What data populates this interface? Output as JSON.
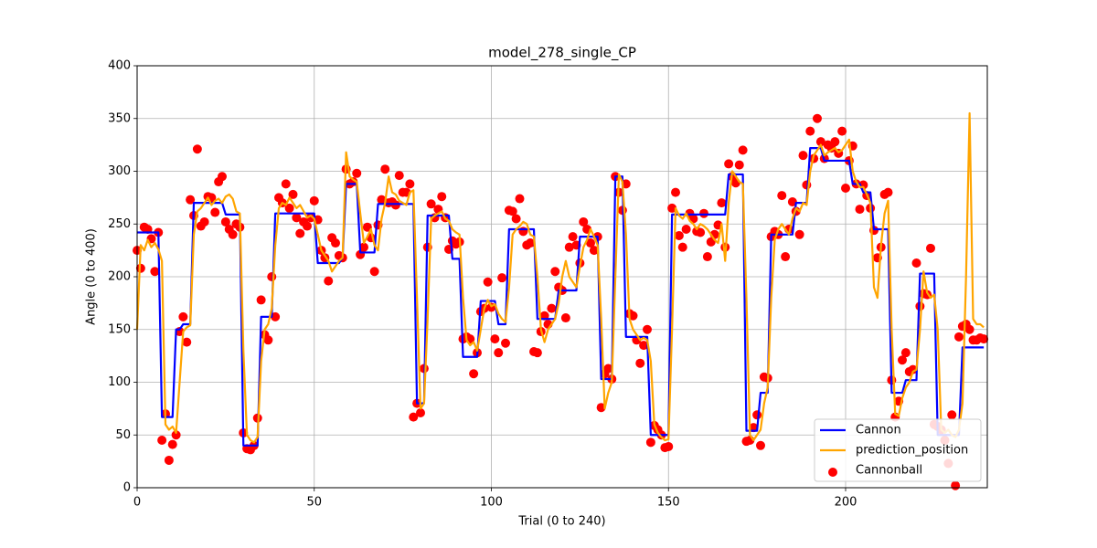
{
  "chart_data": {
    "type": "line",
    "title": "model_278_single_CP",
    "x_label": "Trial (0 to 240)",
    "y_label": "Angle (0 to 400)",
    "xlim": [
      0,
      240
    ],
    "ylim": [
      0,
      400
    ],
    "xticks": [
      0,
      50,
      100,
      150,
      200
    ],
    "yticks": [
      0,
      50,
      100,
      150,
      200,
      250,
      300,
      350,
      400
    ],
    "grid": true,
    "legend": "lower right",
    "x": [
      0,
      1,
      2,
      3,
      4,
      5,
      6,
      7,
      8,
      9,
      10,
      11,
      12,
      13,
      14,
      15,
      16,
      17,
      18,
      19,
      20,
      21,
      22,
      23,
      24,
      25,
      26,
      27,
      28,
      29,
      30,
      31,
      32,
      33,
      34,
      35,
      36,
      37,
      38,
      39,
      40,
      41,
      42,
      43,
      44,
      45,
      46,
      47,
      48,
      49,
      50,
      51,
      52,
      53,
      54,
      55,
      56,
      57,
      58,
      59,
      60,
      61,
      62,
      63,
      64,
      65,
      66,
      67,
      68,
      69,
      70,
      71,
      72,
      73,
      74,
      75,
      76,
      77,
      78,
      79,
      80,
      81,
      82,
      83,
      84,
      85,
      86,
      87,
      88,
      89,
      90,
      91,
      92,
      93,
      94,
      95,
      96,
      97,
      98,
      99,
      100,
      101,
      102,
      103,
      104,
      105,
      106,
      107,
      108,
      109,
      110,
      111,
      112,
      113,
      114,
      115,
      116,
      117,
      118,
      119,
      120,
      121,
      122,
      123,
      124,
      125,
      126,
      127,
      128,
      129,
      130,
      131,
      132,
      133,
      134,
      135,
      136,
      137,
      138,
      139,
      140,
      141,
      142,
      143,
      144,
      145,
      146,
      147,
      148,
      149,
      150,
      151,
      152,
      153,
      154,
      155,
      156,
      157,
      158,
      159,
      160,
      161,
      162,
      163,
      164,
      165,
      166,
      167,
      168,
      169,
      170,
      171,
      172,
      173,
      174,
      175,
      176,
      177,
      178,
      179,
      180,
      181,
      182,
      183,
      184,
      185,
      186,
      187,
      188,
      189,
      190,
      191,
      192,
      193,
      194,
      195,
      196,
      197,
      198,
      199,
      200,
      201,
      202,
      203,
      204,
      205,
      206,
      207,
      208,
      209,
      210,
      211,
      212,
      213,
      214,
      215,
      216,
      217,
      218,
      219,
      220,
      221,
      222,
      223,
      224,
      225,
      226,
      227,
      228,
      229,
      230,
      231,
      232,
      233,
      234,
      235,
      236,
      237,
      238,
      239
    ],
    "series": [
      {
        "name": "Cannon",
        "type": "line",
        "color": "#0000ff",
        "values": [
          242,
          242,
          242,
          242,
          242,
          242,
          242,
          67,
          67,
          67,
          67,
          150,
          150,
          155,
          155,
          155,
          270,
          270,
          270,
          270,
          270,
          270,
          270,
          270,
          270,
          259,
          259,
          259,
          259,
          259,
          40,
          40,
          40,
          40,
          40,
          162,
          162,
          162,
          162,
          260,
          260,
          260,
          260,
          260,
          260,
          260,
          260,
          260,
          260,
          260,
          260,
          213,
          213,
          213,
          213,
          213,
          213,
          213,
          218,
          288,
          288,
          288,
          288,
          223,
          223,
          223,
          223,
          223,
          269,
          269,
          269,
          269,
          269,
          269,
          269,
          269,
          269,
          269,
          269,
          80,
          80,
          80,
          258,
          258,
          258,
          258,
          258,
          258,
          258,
          217,
          217,
          217,
          124,
          124,
          124,
          124,
          124,
          177,
          177,
          177,
          177,
          177,
          155,
          155,
          155,
          245,
          245,
          245,
          245,
          245,
          245,
          245,
          245,
          160,
          160,
          160,
          160,
          160,
          160,
          187,
          187,
          187,
          187,
          187,
          187,
          238,
          238,
          238,
          238,
          238,
          238,
          103,
          103,
          103,
          103,
          295,
          295,
          295,
          143,
          143,
          143,
          143,
          143,
          143,
          143,
          50,
          50,
          50,
          50,
          50,
          50,
          259,
          259,
          259,
          259,
          259,
          259,
          259,
          259,
          259,
          259,
          259,
          259,
          259,
          259,
          259,
          259,
          297,
          297,
          297,
          297,
          297,
          54,
          54,
          54,
          54,
          90,
          90,
          90,
          240,
          240,
          240,
          240,
          240,
          240,
          240,
          270,
          270,
          270,
          270,
          322,
          322,
          322,
          322,
          310,
          310,
          310,
          310,
          310,
          310,
          310,
          310,
          288,
          288,
          288,
          280,
          280,
          280,
          245,
          245,
          245,
          245,
          245,
          90,
          90,
          90,
          90,
          102,
          102,
          102,
          102,
          203,
          203,
          203,
          203,
          203,
          50,
          50,
          50,
          50,
          50,
          50,
          50,
          133,
          133,
          133,
          133,
          133,
          133,
          133
        ]
      },
      {
        "name": "prediction_position",
        "type": "line",
        "color": "#ffa500",
        "values": [
          150,
          230,
          225,
          235,
          228,
          232,
          226,
          215,
          60,
          55,
          58,
          52,
          100,
          148,
          152,
          154,
          240,
          262,
          265,
          270,
          275,
          268,
          272,
          274,
          270,
          276,
          278,
          274,
          262,
          260,
          130,
          50,
          45,
          43,
          48,
          120,
          150,
          155,
          170,
          230,
          265,
          270,
          268,
          275,
          270,
          265,
          268,
          262,
          256,
          258,
          255,
          240,
          225,
          220,
          215,
          205,
          210,
          215,
          218,
          318,
          295,
          292,
          290,
          260,
          232,
          238,
          245,
          230,
          225,
          255,
          270,
          295,
          280,
          278,
          272,
          270,
          268,
          280,
          282,
          180,
          75,
          80,
          160,
          255,
          258,
          260,
          262,
          255,
          253,
          245,
          242,
          240,
          180,
          140,
          135,
          138,
          130,
          150,
          170,
          178,
          172,
          174,
          165,
          160,
          157,
          190,
          240,
          245,
          248,
          252,
          250,
          240,
          238,
          200,
          150,
          138,
          150,
          155,
          160,
          175,
          200,
          215,
          200,
          195,
          190,
          210,
          228,
          235,
          245,
          238,
          230,
          160,
          75,
          90,
          100,
          200,
          297,
          290,
          240,
          160,
          150,
          145,
          140,
          142,
          140,
          120,
          60,
          52,
          48,
          45,
          46,
          150,
          265,
          258,
          255,
          260,
          253,
          250,
          245,
          250,
          248,
          245,
          240,
          235,
          232,
          250,
          215,
          270,
          300,
          295,
          290,
          288,
          180,
          50,
          45,
          50,
          55,
          80,
          95,
          180,
          235,
          245,
          250,
          245,
          240,
          255,
          265,
          262,
          270,
          268,
          300,
          315,
          320,
          325,
          315,
          318,
          320,
          322,
          318,
          320,
          325,
          330,
          300,
          290,
          285,
          285,
          278,
          270,
          190,
          180,
          230,
          260,
          272,
          150,
          70,
          68,
          85,
          95,
          100,
          110,
          112,
          150,
          205,
          185,
          180,
          183,
          150,
          55,
          52,
          55,
          50,
          48,
          55,
          80,
          200,
          355,
          160,
          155,
          155,
          152
        ]
      },
      {
        "name": "Cannonball",
        "type": "scatter",
        "color": "#ff0000",
        "values": [
          225,
          208,
          247,
          245,
          236,
          205,
          242,
          45,
          70,
          26,
          41,
          50,
          148,
          162,
          138,
          273,
          258,
          321,
          248,
          252,
          276,
          275,
          261,
          290,
          295,
          252,
          245,
          240,
          250,
          247,
          52,
          37,
          36,
          40,
          66,
          178,
          145,
          140,
          200,
          162,
          275,
          270,
          288,
          265,
          278,
          256,
          241,
          252,
          248,
          256,
          272,
          254,
          225,
          218,
          196,
          237,
          232,
          220,
          218,
          302,
          288,
          290,
          298,
          221,
          228,
          247,
          237,
          205,
          249,
          273,
          302,
          270,
          271,
          268,
          296,
          280,
          280,
          288,
          67,
          80,
          71,
          113,
          228,
          269,
          256,
          264,
          276,
          256,
          226,
          234,
          231,
          233,
          141,
          143,
          141,
          108,
          128,
          167,
          170,
          195,
          171,
          141,
          128,
          199,
          137,
          263,
          262,
          255,
          274,
          243,
          230,
          232,
          129,
          128,
          148,
          163,
          155,
          170,
          205,
          190,
          187,
          161,
          228,
          238,
          230,
          213,
          252,
          245,
          232,
          225,
          238,
          76,
          108,
          113,
          103,
          295,
          280,
          263,
          288,
          165,
          163,
          140,
          118,
          135,
          150,
          43,
          59,
          55,
          50,
          38,
          39,
          265,
          280,
          239,
          228,
          245,
          260,
          255,
          243,
          242,
          260,
          219,
          233,
          240,
          249,
          270,
          228,
          307,
          295,
          289,
          306,
          320,
          44,
          45,
          57,
          69,
          40,
          105,
          104,
          238,
          243,
          240,
          277,
          219,
          245,
          271,
          262,
          240,
          315,
          287,
          338,
          312,
          350,
          328,
          312,
          325,
          322,
          328,
          317,
          338,
          284,
          310,
          324,
          288,
          264,
          287,
          277,
          265,
          244,
          218,
          228,
          278,
          280,
          102,
          67,
          82,
          121,
          128,
          110,
          112,
          213,
          172,
          184,
          183,
          227,
          60,
          58,
          55,
          45,
          23,
          69,
          2,
          143,
          153,
          155,
          150,
          140,
          140,
          142,
          141
        ]
      }
    ]
  }
}
